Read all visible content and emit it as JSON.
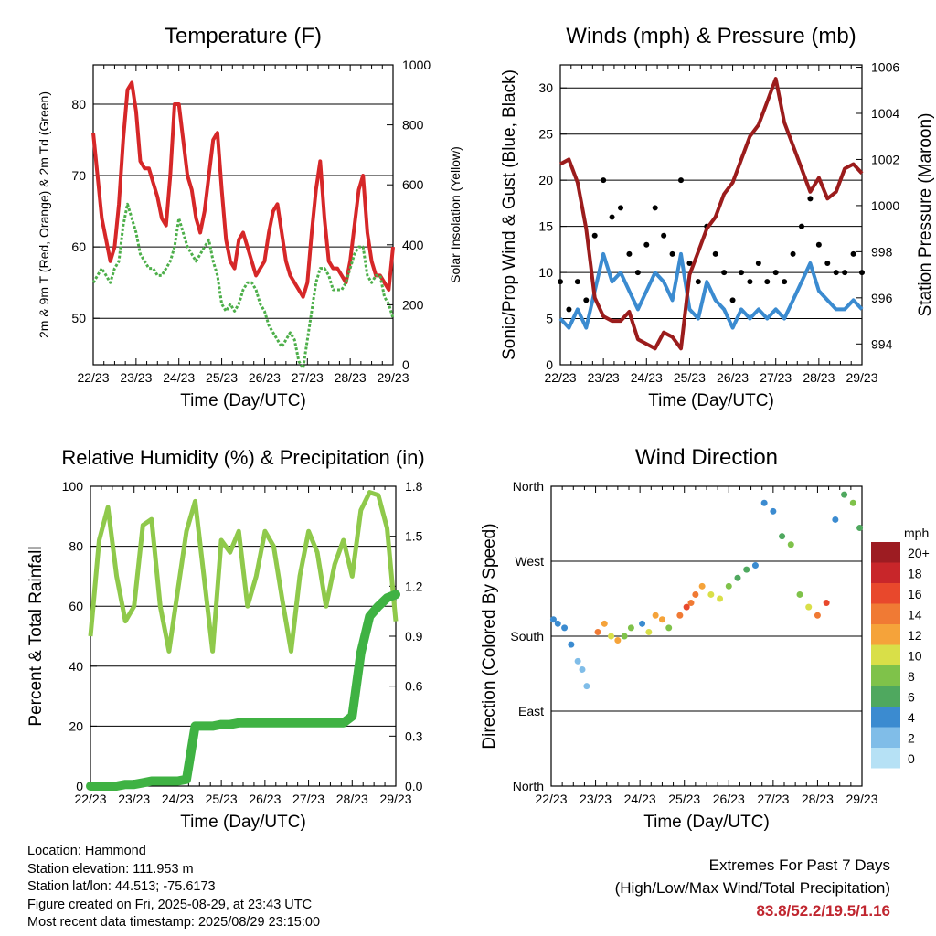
{
  "charts": {
    "temp": {
      "title": "Temperature (F)",
      "ylabel": "2m & 9m T (Red, Orange) & 2m Td (Green)",
      "y2label": "Solar Insolation (Yellow)",
      "xlabel": "Time (Day/UTC)",
      "xticks": [
        "22/23",
        "23/23",
        "24/23",
        "25/23",
        "26/23",
        "27/23",
        "28/23",
        "29/23"
      ],
      "yticks": [
        "50",
        "60",
        "70",
        "80"
      ],
      "y2ticks": [
        "0",
        "200",
        "400",
        "600",
        "800",
        "1000"
      ]
    },
    "wind": {
      "title": "Winds (mph) & Pressure (mb)",
      "ylabel": "Sonic/Prop Wind & Gust (Blue, Black)",
      "y2label": "Station Pressure (Maroon)",
      "xlabel": "Time (Day/UTC)",
      "xticks": [
        "22/23",
        "23/23",
        "24/23",
        "25/23",
        "26/23",
        "27/23",
        "28/23",
        "29/23"
      ],
      "yticks": [
        "0",
        "5",
        "10",
        "15",
        "20",
        "25",
        "30"
      ],
      "y2ticks": [
        "994",
        "996",
        "998",
        "1000",
        "1002",
        "1004",
        "1006"
      ]
    },
    "rh": {
      "title": "Relative Humidity (%) & Precipitation (in)",
      "ylabel": "Percent & Total Rainfall",
      "xlabel": "Time (Day/UTC)",
      "xticks": [
        "22/23",
        "23/23",
        "24/23",
        "25/23",
        "26/23",
        "27/23",
        "28/23",
        "29/23"
      ],
      "yticks": [
        "0",
        "20",
        "40",
        "60",
        "80",
        "100"
      ],
      "y2ticks": [
        "0.0",
        "0.3",
        "0.6",
        "0.9",
        "1.2",
        "1.5",
        "1.8"
      ]
    },
    "wdir": {
      "title": "Wind Direction",
      "ylabel": "Direction (Colored By Speed)",
      "xlabel": "Time (Day/UTC)",
      "xticks": [
        "22/23",
        "23/23",
        "24/23",
        "25/23",
        "26/23",
        "27/23",
        "28/23",
        "29/23"
      ],
      "yticks": [
        "North",
        "East",
        "South",
        "West",
        "North"
      ],
      "legend_title": "mph",
      "legend_labels": [
        "20+",
        "18",
        "16",
        "14",
        "12",
        "10",
        "8",
        "6",
        "4",
        "2",
        "0"
      ]
    }
  },
  "chart_data": [
    {
      "type": "line",
      "id": "temp",
      "x_days": [
        0,
        0.1,
        0.2,
        0.3,
        0.4,
        0.5,
        0.6,
        0.7,
        0.8,
        0.9,
        1.0,
        1.1,
        1.2,
        1.3,
        1.4,
        1.5,
        1.6,
        1.7,
        1.8,
        1.9,
        2.0,
        2.1,
        2.2,
        2.3,
        2.4,
        2.5,
        2.6,
        2.7,
        2.8,
        2.9,
        3.0,
        3.1,
        3.2,
        3.3,
        3.4,
        3.5,
        3.6,
        3.7,
        3.8,
        3.9,
        4.0,
        4.1,
        4.2,
        4.3,
        4.4,
        4.5,
        4.6,
        4.7,
        4.8,
        4.9,
        5.0,
        5.1,
        5.2,
        5.3,
        5.4,
        5.5,
        5.6,
        5.7,
        5.8,
        5.9,
        6.0,
        6.1,
        6.2,
        6.3,
        6.4,
        6.5,
        6.6,
        6.7,
        6.8,
        6.9,
        7.0
      ],
      "series": [
        {
          "name": "2m T",
          "color": "#d62728",
          "values": [
            76,
            70,
            64,
            61,
            58,
            60,
            66,
            75,
            82,
            83,
            79,
            72,
            71,
            71,
            69,
            67,
            64,
            63,
            70,
            80,
            80,
            75,
            70,
            68,
            64,
            62,
            65,
            70,
            75,
            76,
            68,
            61,
            58,
            57,
            61,
            62,
            60,
            58,
            56,
            57,
            58,
            62,
            65,
            66,
            62,
            58,
            56,
            55,
            54,
            53,
            55,
            62,
            68,
            72,
            64,
            58,
            57,
            57,
            56,
            55,
            58,
            63,
            68,
            70,
            62,
            58,
            56,
            56,
            55,
            54,
            60
          ]
        },
        {
          "name": "2m Td",
          "color": "#4daf4a",
          "values": [
            55,
            56,
            57,
            56,
            55,
            57,
            58,
            63,
            66,
            64,
            62,
            59,
            58,
            57,
            57,
            56,
            56,
            57,
            58,
            60,
            64,
            62,
            60,
            59,
            58,
            59,
            60,
            61,
            58,
            56,
            52,
            51,
            52,
            51,
            52,
            54,
            55,
            55,
            54,
            52,
            51,
            49,
            48,
            47,
            46,
            47,
            48,
            47,
            44,
            43,
            47,
            51,
            55,
            57,
            57,
            56,
            54,
            54,
            54,
            55,
            57,
            59,
            60,
            60,
            56,
            55,
            56,
            56,
            53,
            52,
            50
          ]
        }
      ]
    },
    {
      "type": "line",
      "id": "wind",
      "x_days": [
        0,
        0.2,
        0.4,
        0.6,
        0.8,
        1.0,
        1.2,
        1.4,
        1.6,
        1.8,
        2.0,
        2.2,
        2.4,
        2.6,
        2.8,
        3.0,
        3.2,
        3.4,
        3.6,
        3.8,
        4.0,
        4.2,
        4.4,
        4.6,
        4.8,
        5.0,
        5.2,
        5.4,
        5.6,
        5.8,
        6.0,
        6.2,
        6.4,
        6.6,
        6.8,
        7.0
      ],
      "series": [
        {
          "name": "Wind",
          "color": "#3b8bd0",
          "values": [
            5,
            4,
            6,
            4,
            8,
            12,
            9,
            10,
            8,
            6,
            8,
            10,
            9,
            7,
            12,
            6,
            5,
            9,
            7,
            6,
            4,
            6,
            5,
            6,
            5,
            6,
            5,
            7,
            9,
            11,
            8,
            7,
            6,
            6,
            7,
            6
          ]
        },
        {
          "name": "Gust",
          "color": "#000000",
          "values": [
            9,
            6,
            9,
            7,
            14,
            20,
            16,
            17,
            12,
            10,
            13,
            17,
            14,
            12,
            20,
            11,
            9,
            15,
            12,
            10,
            7,
            10,
            9,
            11,
            9,
            10,
            9,
            12,
            15,
            18,
            13,
            11,
            10,
            10,
            12,
            10
          ]
        },
        {
          "name": "Station Pressure",
          "color": "#9b1c1c",
          "axis": "right",
          "values": [
            1001.8,
            1002,
            1001,
            999,
            996,
            995.2,
            995,
            995,
            995.4,
            994.2,
            994,
            993.8,
            994.5,
            994.3,
            993.8,
            997,
            998,
            999,
            999.5,
            1000.5,
            1001,
            1002,
            1003,
            1003.5,
            1004.5,
            1005.5,
            1003.6,
            1002.6,
            1001.6,
            1000.6,
            1001.2,
            1000.3,
            1000.6,
            1001.6,
            1001.8,
            1001.4
          ]
        }
      ],
      "ylim": [
        0,
        33
      ],
      "y2lim": [
        993,
        1006.5
      ]
    },
    {
      "type": "line",
      "id": "rh",
      "x_days": [
        0,
        0.2,
        0.4,
        0.6,
        0.8,
        1.0,
        1.2,
        1.4,
        1.6,
        1.8,
        2.0,
        2.2,
        2.4,
        2.6,
        2.8,
        3.0,
        3.2,
        3.4,
        3.6,
        3.8,
        4.0,
        4.2,
        4.4,
        4.6,
        4.8,
        5.0,
        5.2,
        5.4,
        5.6,
        5.8,
        6.0,
        6.2,
        6.4,
        6.6,
        6.8,
        7.0
      ],
      "series": [
        {
          "name": "Relative Humidity",
          "color": "#8fc94b",
          "values": [
            50,
            82,
            93,
            70,
            55,
            60,
            87,
            89,
            60,
            45,
            65,
            85,
            95,
            70,
            45,
            82,
            78,
            85,
            60,
            70,
            85,
            80,
            62,
            45,
            70,
            85,
            78,
            60,
            74,
            82,
            70,
            92,
            98,
            97,
            86,
            55
          ]
        },
        {
          "name": "Total Rainfall",
          "color": "#3fb243",
          "axis": "right",
          "values": [
            0,
            0,
            0,
            0,
            0.01,
            0.01,
            0.02,
            0.03,
            0.03,
            0.03,
            0.03,
            0.04,
            0.36,
            0.36,
            0.36,
            0.37,
            0.37,
            0.38,
            0.38,
            0.38,
            0.38,
            0.38,
            0.38,
            0.38,
            0.38,
            0.38,
            0.38,
            0.38,
            0.38,
            0.38,
            0.42,
            0.8,
            1.02,
            1.08,
            1.13,
            1.15
          ]
        }
      ],
      "ylim": [
        0,
        100
      ],
      "y2lim": [
        0,
        1.8
      ]
    },
    {
      "type": "scatter",
      "id": "wdir",
      "color_scale": [
        "#b6e1f5",
        "#80bde8",
        "#3b8bd0",
        "#4fa85f",
        "#7fc24a",
        "#d9df48",
        "#f5a33a",
        "#f07a34",
        "#e8482c",
        "#c8262a",
        "#9d1c22"
      ],
      "points": [
        [
          0.05,
          200,
          4
        ],
        [
          0.15,
          195,
          3
        ],
        [
          0.3,
          190,
          4
        ],
        [
          0.45,
          170,
          3
        ],
        [
          0.6,
          150,
          2
        ],
        [
          0.7,
          140,
          2
        ],
        [
          0.8,
          120,
          1
        ],
        [
          1.05,
          185,
          14
        ],
        [
          1.2,
          195,
          12
        ],
        [
          1.35,
          180,
          10
        ],
        [
          1.5,
          175,
          12
        ],
        [
          1.65,
          180,
          8
        ],
        [
          1.8,
          190,
          8
        ],
        [
          2.05,
          195,
          4
        ],
        [
          2.2,
          185,
          9
        ],
        [
          2.35,
          205,
          12
        ],
        [
          2.5,
          200,
          12
        ],
        [
          2.65,
          190,
          8
        ],
        [
          2.9,
          205,
          14
        ],
        [
          3.05,
          215,
          16
        ],
        [
          3.15,
          220,
          14
        ],
        [
          3.25,
          230,
          14
        ],
        [
          3.4,
          240,
          12
        ],
        [
          3.6,
          230,
          10
        ],
        [
          3.8,
          225,
          9
        ],
        [
          4.0,
          240,
          8
        ],
        [
          4.2,
          250,
          6
        ],
        [
          4.4,
          260,
          6
        ],
        [
          4.6,
          265,
          4
        ],
        [
          4.8,
          340,
          4
        ],
        [
          5.0,
          330,
          4
        ],
        [
          5.2,
          300,
          6
        ],
        [
          5.4,
          290,
          8
        ],
        [
          5.6,
          230,
          8
        ],
        [
          5.8,
          215,
          10
        ],
        [
          6.0,
          205,
          14
        ],
        [
          6.2,
          220,
          16
        ],
        [
          6.4,
          320,
          4
        ],
        [
          6.6,
          350,
          6
        ],
        [
          6.8,
          340,
          8
        ],
        [
          6.95,
          310,
          6
        ]
      ]
    }
  ],
  "info": {
    "location": "Location: Hammond",
    "elevation": "Station elevation: 111.953 m",
    "latlon": "Station lat/lon: 44.513; -75.6173",
    "created": "Figure created on Fri, 2025-08-29, at 23:43 UTC",
    "recent": "Most recent data timestamp: 2025/08/29 23:15:00"
  },
  "extremes": {
    "title": "Extremes For Past 7 Days",
    "subtitle": "(High/Low/Max Wind/Total Precipitation)",
    "values": "83.8/52.2/19.5/1.16"
  }
}
